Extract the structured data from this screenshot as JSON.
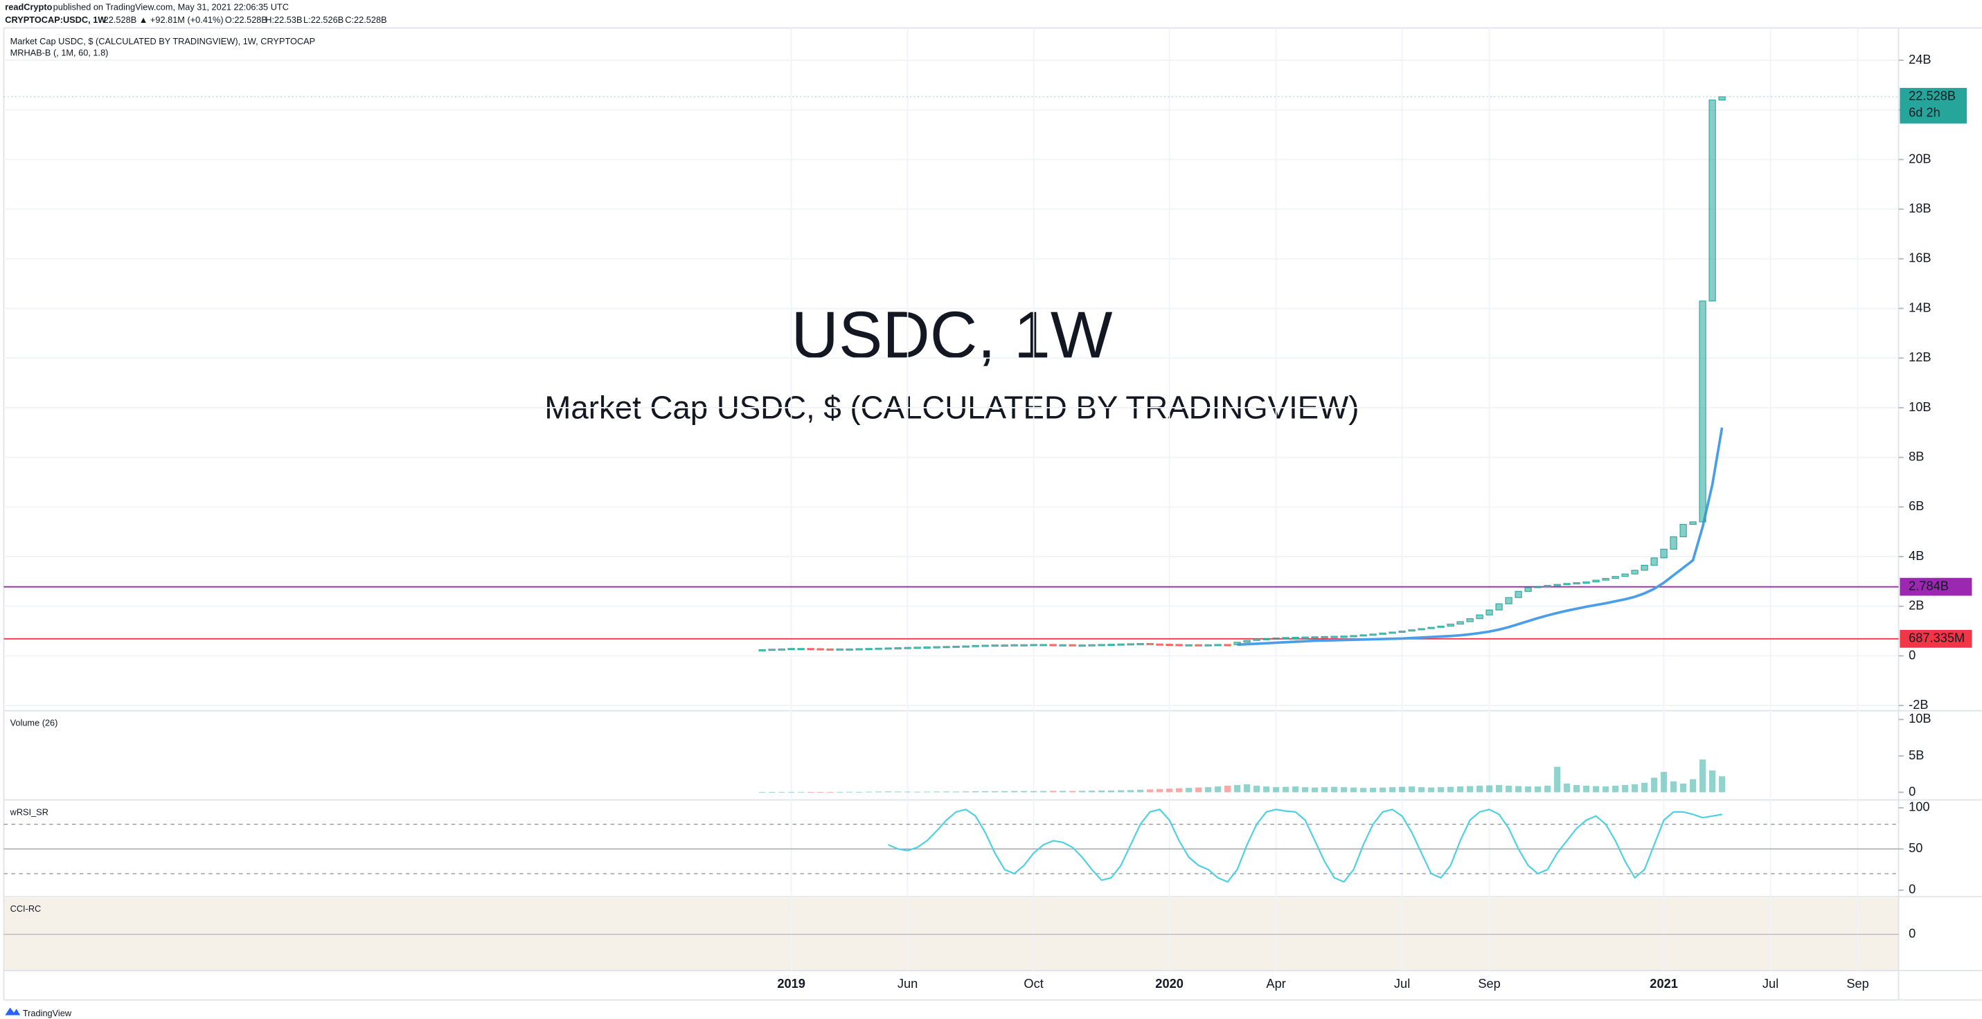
{
  "header": {
    "publisher": "readCrypto",
    "published": "published on TradingView.com, May 31, 2021 22:06:35 UTC",
    "symbol": "CRYPTOCAP:USDC, 1W",
    "quote": "22.528B ▲ +92.81M (+0.41%)",
    "ohlc": [
      "O:22.528B",
      "H:22.53B",
      "L:22.526B",
      "C:22.528B"
    ]
  },
  "footer": {
    "brand": "TradingView"
  },
  "chart_data": {
    "type": "candlestick",
    "title": "Market Cap USDC, $ (CALCULATED BY TRADINGVIEW), 1W, CRYPTOCAP",
    "indicator": "MRHAB-B (, 1M, 60, 1.8)",
    "watermark": [
      "USDC, 1W",
      "Market Cap USDC, $ (CALCULATED BY TRADINGVIEW)"
    ],
    "up_color": "#26a69a",
    "down_color": "#ef5350",
    "categories": [
      null,
      null,
      null,
      "2019",
      null,
      null,
      null,
      null,
      null,
      null,
      null,
      null,
      null,
      null,
      null,
      "Jun",
      null,
      null,
      null,
      null,
      null,
      null,
      null,
      null,
      null,
      null,
      null,
      null,
      "Oct",
      null,
      null,
      null,
      null,
      null,
      null,
      null,
      null,
      null,
      null,
      null,
      null,
      null,
      "2020",
      null,
      null,
      null,
      null,
      null,
      null,
      null,
      null,
      null,
      null,
      "Apr",
      null,
      null,
      null,
      null,
      null,
      null,
      null,
      null,
      null,
      null,
      null,
      null,
      "Jul",
      null,
      null,
      null,
      null,
      null,
      null,
      null,
      null,
      "Sep",
      null,
      null,
      null,
      null,
      null,
      null,
      null,
      null,
      null,
      null,
      null,
      null,
      null,
      null,
      null,
      null,
      null,
      "2021",
      null,
      null,
      null,
      null,
      null,
      null,
      null,
      null,
      null,
      null,
      "Jul",
      null,
      null,
      null,
      null,
      null,
      null,
      null,
      null,
      "Sep"
    ],
    "values": [
      0.25,
      0.27,
      0.28,
      0.3,
      0.3,
      0.29,
      0.28,
      0.27,
      0.28,
      0.28,
      0.29,
      0.3,
      0.31,
      0.32,
      0.33,
      0.34,
      0.35,
      0.36,
      0.37,
      0.38,
      0.39,
      0.4,
      0.42,
      0.43,
      0.44,
      0.44,
      0.45,
      0.45,
      0.46,
      0.46,
      0.45,
      0.45,
      0.44,
      0.44,
      0.45,
      0.46,
      0.47,
      0.48,
      0.49,
      0.5,
      0.48,
      0.47,
      0.46,
      0.45,
      0.45,
      0.44,
      0.45,
      0.46,
      0.45,
      0.55,
      0.62,
      0.68,
      0.7,
      0.72,
      0.74,
      0.75,
      0.76,
      0.77,
      0.78,
      0.79,
      0.8,
      0.82,
      0.85,
      0.88,
      0.92,
      0.96,
      1.0,
      1.05,
      1.1,
      1.15,
      1.2,
      1.28,
      1.38,
      1.5,
      1.65,
      1.85,
      2.1,
      2.35,
      2.6,
      2.75,
      2.8,
      2.84,
      2.88,
      2.92,
      2.95,
      2.98,
      3.05,
      3.12,
      3.2,
      3.3,
      3.45,
      3.65,
      3.95,
      4.3,
      4.8,
      5.3,
      5.4,
      14.3,
      22.4,
      22.528,
      null,
      null,
      null,
      null,
      null,
      null,
      null,
      null,
      null,
      null,
      null,
      null,
      null,
      null
    ],
    "ma": {
      "color": "#4a9ee8",
      "values": [
        null,
        null,
        null,
        null,
        null,
        null,
        null,
        null,
        null,
        null,
        null,
        null,
        null,
        null,
        null,
        null,
        null,
        null,
        null,
        null,
        null,
        null,
        null,
        null,
        null,
        null,
        null,
        null,
        null,
        null,
        null,
        null,
        null,
        null,
        null,
        null,
        null,
        null,
        null,
        null,
        null,
        null,
        null,
        null,
        null,
        null,
        null,
        null,
        null,
        0.45,
        0.47,
        0.49,
        0.51,
        0.53,
        0.55,
        0.57,
        0.59,
        0.61,
        0.62,
        0.63,
        0.64,
        0.65,
        0.66,
        0.67,
        0.68,
        0.69,
        0.7,
        0.72,
        0.74,
        0.76,
        0.78,
        0.8,
        0.83,
        0.87,
        0.92,
        0.98,
        1.06,
        1.16,
        1.28,
        1.4,
        1.52,
        1.63,
        1.73,
        1.82,
        1.9,
        1.98,
        2.05,
        2.12,
        2.2,
        2.28,
        2.38,
        2.52,
        2.7,
        2.95,
        3.25,
        3.55,
        3.85,
        5.2,
        6.9,
        9.2,
        null,
        null,
        null,
        null,
        null,
        null,
        null,
        null,
        null,
        null,
        null,
        null,
        null,
        null
      ]
    },
    "ylim": [
      -2.16,
      25.3
    ],
    "yticks": [
      {
        "value": -2,
        "label": "-2B"
      },
      0,
      {
        "value": 2,
        "label": "2B"
      },
      {
        "value": 4,
        "label": "4B"
      },
      {
        "value": 6,
        "label": "6B"
      },
      {
        "value": 8,
        "label": "8B"
      },
      {
        "value": 10,
        "label": "10B"
      },
      {
        "value": 12,
        "label": "12B"
      },
      {
        "value": 14,
        "label": "14B"
      },
      {
        "value": 16,
        "label": "16B"
      },
      {
        "value": 18,
        "label": "18B"
      },
      {
        "value": 20,
        "label": "20B"
      },
      {
        "value": 22,
        "label": "22B"
      },
      {
        "value": 24,
        "label": "24B"
      }
    ],
    "grid": true,
    "last_price": {
      "value": 22.528,
      "label": "22.528B",
      "countdown": "6d 2h",
      "color": "#26a69a"
    },
    "hlines": [
      {
        "value": 2.784,
        "label": "2.784B",
        "color": "#9c27b0"
      },
      {
        "value": 0.687335,
        "label": "687.335M",
        "color": "#f23645"
      }
    ],
    "volume": {
      "label": "Volume (26)",
      "ylim": [
        0,
        10.5
      ],
      "yticks": [
        {
          "value": 10,
          "label": "10B"
        },
        {
          "value": 5,
          "label": "5B"
        },
        0
      ],
      "values": [
        0.03,
        0.04,
        0.05,
        0.05,
        0.06,
        0.05,
        0.04,
        0.05,
        0.06,
        0.07,
        0.06,
        0.08,
        0.1,
        0.12,
        0.1,
        0.09,
        0.08,
        0.09,
        0.1,
        0.11,
        0.1,
        0.12,
        0.14,
        0.15,
        0.14,
        0.16,
        0.18,
        0.17,
        0.16,
        0.18,
        0.2,
        0.19,
        0.18,
        0.2,
        0.22,
        0.24,
        0.25,
        0.28,
        0.3,
        0.35,
        0.4,
        0.45,
        0.5,
        0.55,
        0.6,
        0.65,
        0.7,
        0.8,
        0.9,
        1.0,
        1.1,
        0.9,
        0.8,
        0.7,
        0.75,
        0.8,
        0.7,
        0.65,
        0.7,
        0.75,
        0.7,
        0.65,
        0.6,
        0.62,
        0.65,
        0.7,
        0.75,
        0.8,
        0.7,
        0.65,
        0.7,
        0.75,
        0.8,
        0.85,
        0.9,
        0.95,
        1.0,
        0.9,
        0.85,
        0.8,
        0.8,
        0.9,
        3.5,
        1.2,
        1.0,
        0.9,
        0.85,
        0.8,
        0.9,
        1.0,
        1.1,
        1.3,
        2.0,
        2.8,
        1.5,
        1.2,
        1.8,
        4.5,
        3.0,
        2.2,
        null,
        null,
        null,
        null,
        null,
        null,
        null,
        null,
        null,
        null,
        null,
        null,
        null,
        null
      ]
    },
    "rsi": {
      "label": "wRSI_SR",
      "ylim": [
        -8,
        108
      ],
      "yticks": [
        100,
        50,
        0
      ],
      "levels": [
        80,
        50,
        20
      ],
      "color": "#4dd0e1",
      "values": [
        null,
        null,
        null,
        null,
        null,
        null,
        null,
        null,
        null,
        null,
        null,
        null,
        null,
        55,
        50,
        48,
        52,
        60,
        72,
        85,
        95,
        98,
        90,
        70,
        45,
        25,
        20,
        30,
        45,
        55,
        60,
        58,
        52,
        40,
        25,
        12,
        15,
        30,
        55,
        80,
        95,
        98,
        85,
        60,
        40,
        30,
        25,
        15,
        10,
        25,
        55,
        80,
        95,
        98,
        96,
        95,
        85,
        60,
        35,
        15,
        10,
        25,
        55,
        80,
        95,
        98,
        90,
        70,
        45,
        20,
        15,
        30,
        60,
        85,
        95,
        98,
        92,
        75,
        50,
        30,
        20,
        25,
        45,
        60,
        75,
        85,
        90,
        80,
        60,
        35,
        15,
        25,
        55,
        85,
        95,
        95,
        92,
        88,
        90,
        92,
        null,
        null,
        null,
        null,
        null,
        null,
        null,
        null,
        null,
        null,
        null,
        null,
        null,
        null
      ]
    },
    "cci": {
      "label": "CCI-RC",
      "ylim": [
        -30,
        30
      ],
      "yticks": [
        0
      ]
    }
  }
}
